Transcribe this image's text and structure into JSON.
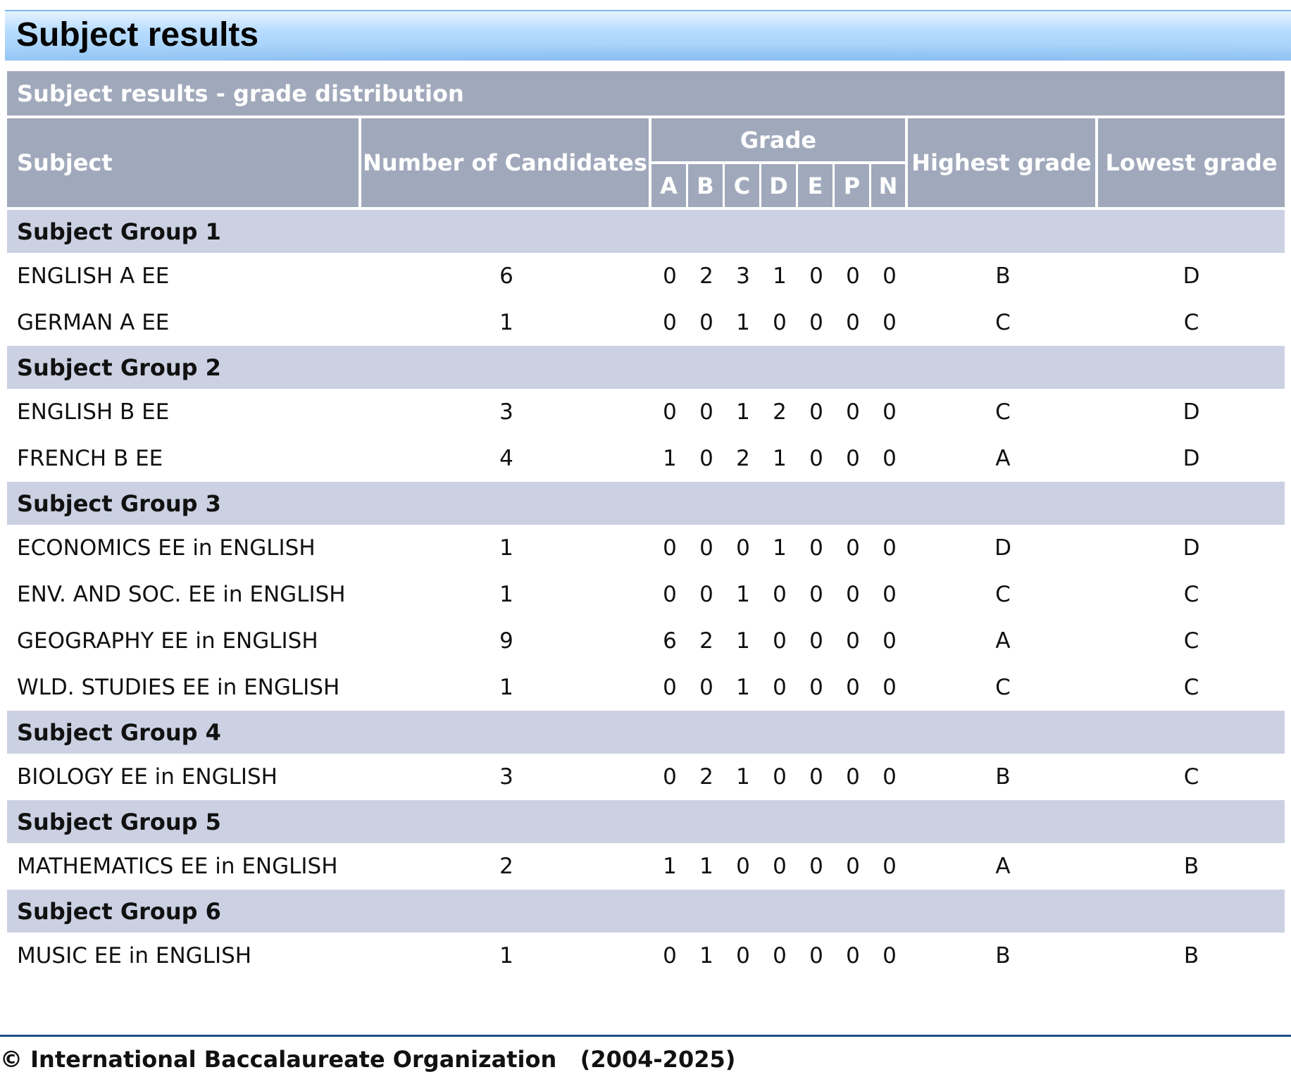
{
  "page": {
    "title": "Subject results"
  },
  "table": {
    "caption": "Subject results - grade distribution",
    "headers": {
      "subject": "Subject",
      "candidates": "Number of Candidates",
      "grade": "Grade",
      "grade_letters": [
        "A",
        "B",
        "C",
        "D",
        "E",
        "P",
        "N"
      ],
      "highest": "Highest grade",
      "lowest": "Lowest grade"
    },
    "groups": [
      {
        "name": "Subject Group 1",
        "rows": [
          {
            "subject": "ENGLISH A EE",
            "candidates": "6",
            "grades": [
              "0",
              "2",
              "3",
              "1",
              "0",
              "0",
              "0"
            ],
            "highest": "B",
            "lowest": "D"
          },
          {
            "subject": "GERMAN A EE",
            "candidates": "1",
            "grades": [
              "0",
              "0",
              "1",
              "0",
              "0",
              "0",
              "0"
            ],
            "highest": "C",
            "lowest": "C"
          }
        ]
      },
      {
        "name": "Subject Group 2",
        "rows": [
          {
            "subject": "ENGLISH B EE",
            "candidates": "3",
            "grades": [
              "0",
              "0",
              "1",
              "2",
              "0",
              "0",
              "0"
            ],
            "highest": "C",
            "lowest": "D"
          },
          {
            "subject": "FRENCH B EE",
            "candidates": "4",
            "grades": [
              "1",
              "0",
              "2",
              "1",
              "0",
              "0",
              "0"
            ],
            "highest": "A",
            "lowest": "D"
          }
        ]
      },
      {
        "name": "Subject Group 3",
        "rows": [
          {
            "subject": "ECONOMICS EE in ENGLISH",
            "candidates": "1",
            "grades": [
              "0",
              "0",
              "0",
              "1",
              "0",
              "0",
              "0"
            ],
            "highest": "D",
            "lowest": "D"
          },
          {
            "subject": "ENV. AND SOC. EE in ENGLISH",
            "candidates": "1",
            "grades": [
              "0",
              "0",
              "1",
              "0",
              "0",
              "0",
              "0"
            ],
            "highest": "C",
            "lowest": "C"
          },
          {
            "subject": "GEOGRAPHY EE in ENGLISH",
            "candidates": "9",
            "grades": [
              "6",
              "2",
              "1",
              "0",
              "0",
              "0",
              "0"
            ],
            "highest": "A",
            "lowest": "C"
          },
          {
            "subject": "WLD. STUDIES EE in ENGLISH",
            "candidates": "1",
            "grades": [
              "0",
              "0",
              "1",
              "0",
              "0",
              "0",
              "0"
            ],
            "highest": "C",
            "lowest": "C"
          }
        ]
      },
      {
        "name": "Subject Group 4",
        "rows": [
          {
            "subject": "BIOLOGY EE in ENGLISH",
            "candidates": "3",
            "grades": [
              "0",
              "2",
              "1",
              "0",
              "0",
              "0",
              "0"
            ],
            "highest": "B",
            "lowest": "C"
          }
        ]
      },
      {
        "name": "Subject Group 5",
        "rows": [
          {
            "subject": "MATHEMATICS EE in ENGLISH",
            "candidates": "2",
            "grades": [
              "1",
              "1",
              "0",
              "0",
              "0",
              "0",
              "0"
            ],
            "highest": "A",
            "lowest": "B"
          }
        ]
      },
      {
        "name": "Subject Group 6",
        "rows": [
          {
            "subject": "MUSIC EE in ENGLISH",
            "candidates": "1",
            "grades": [
              "0",
              "1",
              "0",
              "0",
              "0",
              "0",
              "0"
            ],
            "highest": "B",
            "lowest": "B"
          }
        ]
      }
    ]
  },
  "footer": {
    "copyright": "© International Baccalaureate Organization   (2004-2025)"
  }
}
